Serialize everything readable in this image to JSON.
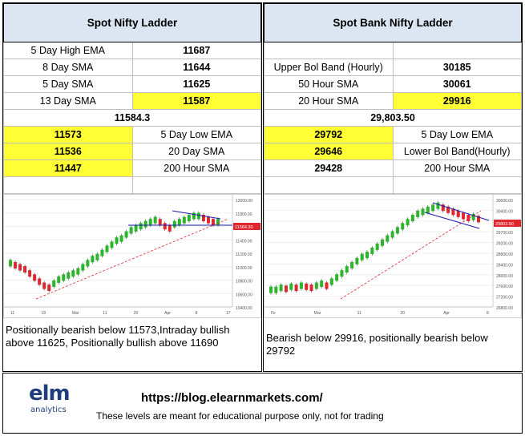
{
  "nifty": {
    "title": "Spot Nifty Ladder",
    "upper": [
      {
        "label": "5 Day High EMA",
        "value": "11687",
        "highlight": false
      },
      {
        "label": "8 Day SMA",
        "value": "11644",
        "highlight": false
      },
      {
        "label": "5 Day SMA",
        "value": "11625",
        "highlight": false
      },
      {
        "label": "13 Day SMA",
        "value": "11587",
        "highlight": true
      }
    ],
    "spot": "11584.3",
    "lower": [
      {
        "value": "11573",
        "label": "5 Day Low EMA",
        "highlight": true
      },
      {
        "value": "11536",
        "label": "20 Day SMA",
        "highlight": true
      },
      {
        "value": "11447",
        "label": "200 Hour SMA",
        "highlight": true
      }
    ],
    "commentary": "Positionally bearish below 11573,Intraday bullish above 11625, Positionally bullish above 11690",
    "chart": {
      "y_ticks": [
        "12000.00",
        "11800.00",
        "11600.00",
        "11400.00",
        "11200.00",
        "11000.00",
        "10800.00",
        "10600.00",
        "10400.00"
      ],
      "x_ticks": [
        "11",
        "18",
        "Mar",
        "11",
        "20",
        "Apr",
        "8",
        "17"
      ],
      "price_tag": "11584.30",
      "accent_up": "#2bb52b",
      "accent_down": "#e0262e"
    }
  },
  "banknifty": {
    "title": "Spot Bank Nifty Ladder",
    "upper": [
      {
        "label": "Upper Bol Band (Hourly)",
        "value": "30185",
        "highlight": false
      },
      {
        "label": "50 Hour SMA",
        "value": "30061",
        "highlight": false
      },
      {
        "label": "20 Hour SMA",
        "value": "29916",
        "highlight": true
      }
    ],
    "spot": "29,803.50",
    "lower": [
      {
        "value": "29792",
        "label": "5 Day Low EMA",
        "highlight": true
      },
      {
        "value": "29646",
        "label": "Lower Bol Band(Hourly)",
        "highlight": true
      },
      {
        "value": "29428",
        "label": "200 Hour SMA",
        "highlight": false
      }
    ],
    "commentary": "Bearish below 29916, positionally bearish below 29792",
    "chart": {
      "y_ticks": [
        "30600.00",
        "30400.00",
        "30000.00",
        "29700.00",
        "29200.00",
        "28800.00",
        "28400.00",
        "28000.00",
        "27600.00",
        "27200.00",
        "26800.00"
      ],
      "x_ticks": [
        "Fe",
        "Mar",
        "11",
        "20",
        "Apr",
        "8"
      ],
      "price_tag": "29803.50"
    }
  },
  "footer": {
    "url": "https://blog.elearnmarkets.com/",
    "disclaimer": "These levels are meant for educational purpose only, not for trading",
    "logo_text": "elm",
    "logo_sub": "analytics",
    "logo_color": "#1f3d7a"
  }
}
